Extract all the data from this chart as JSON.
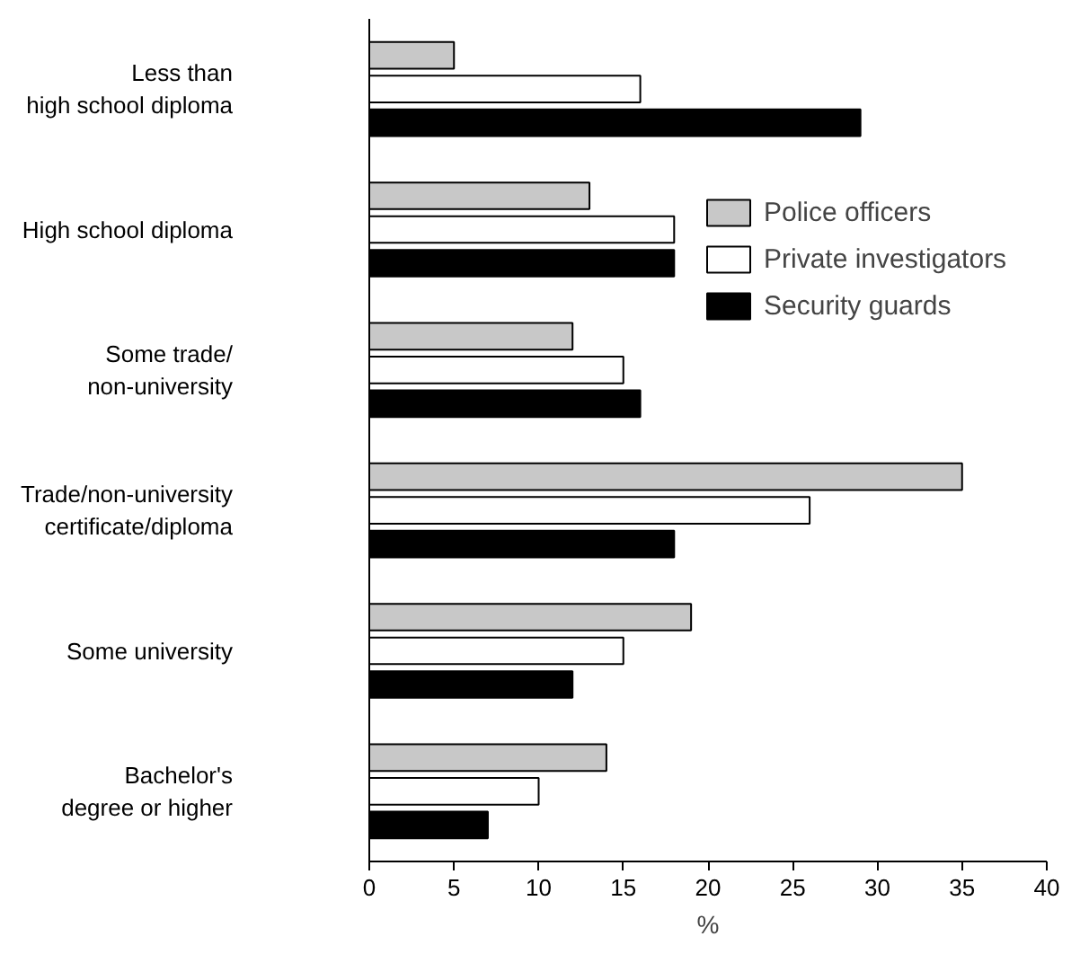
{
  "chart_data": {
    "type": "bar",
    "orientation": "horizontal",
    "xlabel": "%",
    "categories": [
      "Less than\nhigh school diploma",
      "High school diploma",
      "Some trade/\nnon-university",
      "Trade/non-university\ncertificate/diploma",
      "Some university",
      "Bachelor's\ndegree or higher"
    ],
    "series": [
      {
        "name": "Police officers",
        "color": "#c8c8c8",
        "values": [
          5,
          13,
          12,
          35,
          19,
          14
        ]
      },
      {
        "name": "Private investigators",
        "color": "#ffffff",
        "values": [
          16,
          18,
          15,
          26,
          15,
          10
        ]
      },
      {
        "name": "Security guards",
        "color": "#000000",
        "values": [
          29,
          18,
          16,
          18,
          12,
          7
        ]
      }
    ],
    "xlim": [
      0,
      40
    ],
    "xticks": [
      0,
      5,
      10,
      15,
      20,
      25,
      30,
      35,
      40
    ],
    "grid": false,
    "legend": "right"
  }
}
